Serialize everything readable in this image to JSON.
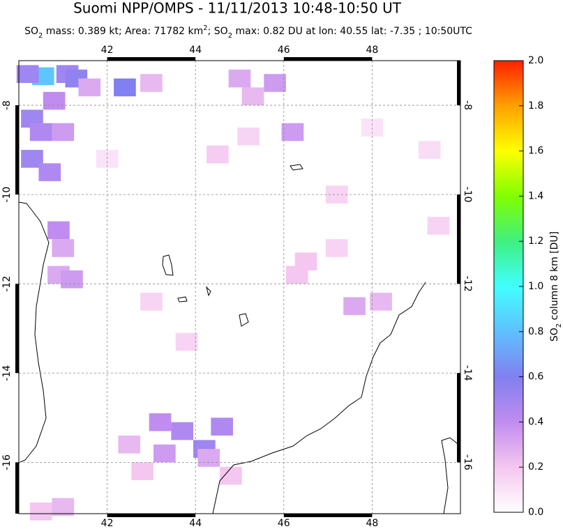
{
  "map": {
    "title": "Suomi NPP/OMPS - 11/11/2013 10:48-10:50 UT",
    "subtitle": [
      "SO",
      "2",
      " mass: 0.389 kt; Area: 71782 km",
      "2",
      "; SO",
      "2",
      " max: 0.82 DU at lon: 40.55 lat: -7.35 ; 10:50UTC"
    ],
    "xlim": [
      40,
      50
    ],
    "ylim": [
      -7,
      -17.15
    ],
    "xticks": [
      42,
      44,
      46,
      48
    ],
    "yticks": [
      -8,
      -10,
      -12,
      -14,
      -16
    ],
    "colorbar": {
      "label": [
        "SO",
        "2",
        " column 8 km [DU]"
      ],
      "lim": [
        0,
        2
      ],
      "ticks": [
        {
          "value": 0,
          "label": "0.0"
        },
        0.2,
        0.4,
        0.6,
        0.8,
        {
          "value": 1,
          "label": "1.0"
        },
        1.2,
        1.4,
        1.6,
        1.8,
        {
          "value": 2,
          "label": "2.0"
        }
      ],
      "colormap": [
        "#ffffff",
        "#f5c6f0",
        "#c08cf0",
        "#8080f0",
        "#60c0ff",
        "#40ffff",
        "#40f080",
        "#80ff00",
        "#ffff00",
        "#ffa000",
        "#ff2000"
      ]
    },
    "cells": [
      [
        40.55,
        -7.35,
        0.82
      ],
      [
        40.2,
        -7.3,
        0.5
      ],
      [
        41.1,
        -7.3,
        0.5
      ],
      [
        41.3,
        -7.4,
        0.55
      ],
      [
        42.4,
        -7.6,
        0.6
      ],
      [
        40.3,
        -8.3,
        0.5
      ],
      [
        40.5,
        -8.6,
        0.45
      ],
      [
        40.3,
        -9.2,
        0.5
      ],
      [
        40.7,
        -9.5,
        0.45
      ],
      [
        41.0,
        -8.6,
        0.35
      ],
      [
        40.8,
        -7.9,
        0.4
      ],
      [
        41.6,
        -7.6,
        0.3
      ],
      [
        43.0,
        -7.5,
        0.25
      ],
      [
        45.0,
        -7.4,
        0.3
      ],
      [
        45.8,
        -7.5,
        0.35
      ],
      [
        46.2,
        -8.6,
        0.35
      ],
      [
        45.3,
        -7.8,
        0.25
      ],
      [
        40.9,
        -10.8,
        0.4
      ],
      [
        41.0,
        -11.2,
        0.3
      ],
      [
        40.9,
        -11.8,
        0.3
      ],
      [
        41.2,
        -11.9,
        0.35
      ],
      [
        47.6,
        -12.5,
        0.3
      ],
      [
        48.2,
        -12.4,
        0.25
      ],
      [
        46.3,
        -11.8,
        0.2
      ],
      [
        43.2,
        -15.1,
        0.4
      ],
      [
        43.7,
        -15.3,
        0.45
      ],
      [
        44.2,
        -15.7,
        0.5
      ],
      [
        44.6,
        -15.2,
        0.45
      ],
      [
        43.3,
        -15.8,
        0.35
      ],
      [
        42.5,
        -15.6,
        0.25
      ],
      [
        44.3,
        -15.9,
        0.3
      ],
      [
        44.8,
        -16.3,
        0.2
      ],
      [
        42.8,
        -16.2,
        0.2
      ],
      [
        41.0,
        -17.0,
        0.25
      ],
      [
        40.5,
        -17.1,
        0.2
      ],
      [
        43.0,
        -12.4,
        0.15
      ],
      [
        42.0,
        -9.2,
        0.1
      ],
      [
        48.0,
        -8.5,
        0.1
      ],
      [
        49.3,
        -9.0,
        0.12
      ],
      [
        47.2,
        -10.0,
        0.15
      ],
      [
        49.5,
        -10.7,
        0.15
      ],
      [
        44.5,
        -9.1,
        0.18
      ],
      [
        45.2,
        -8.7,
        0.15
      ],
      [
        46.5,
        -11.5,
        0.2
      ],
      [
        47.2,
        -11.2,
        0.15
      ],
      [
        43.8,
        -13.3,
        0.15
      ]
    ]
  }
}
